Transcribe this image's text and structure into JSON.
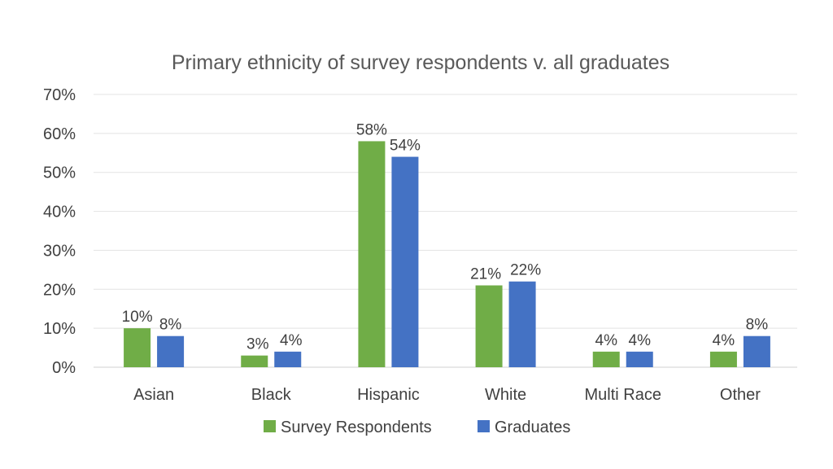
{
  "chart_data": {
    "type": "bar",
    "title": "Primary ethnicity of survey respondents v. all graduates",
    "categories": [
      "Asian",
      "Black",
      "Hispanic",
      "White",
      "Multi Race",
      "Other"
    ],
    "series": [
      {
        "name": "Survey Respondents",
        "color": "#70ad47",
        "values": [
          10,
          3,
          58,
          21,
          4,
          4
        ],
        "labels": [
          "10%",
          "3%",
          "58%",
          "21%",
          "4%",
          "4%"
        ]
      },
      {
        "name": "Graduates",
        "color": "#4472c4",
        "values": [
          8,
          4,
          54,
          22,
          4,
          8
        ],
        "labels": [
          "8%",
          "4%",
          "54%",
          "22%",
          "4%",
          "8%"
        ]
      }
    ],
    "yticks": [
      "0%",
      "10%",
      "20%",
      "30%",
      "40%",
      "50%",
      "60%",
      "70%"
    ],
    "ylim": [
      0,
      70
    ],
    "grid": true,
    "legend_position": "bottom",
    "xlabel": "",
    "ylabel": ""
  }
}
